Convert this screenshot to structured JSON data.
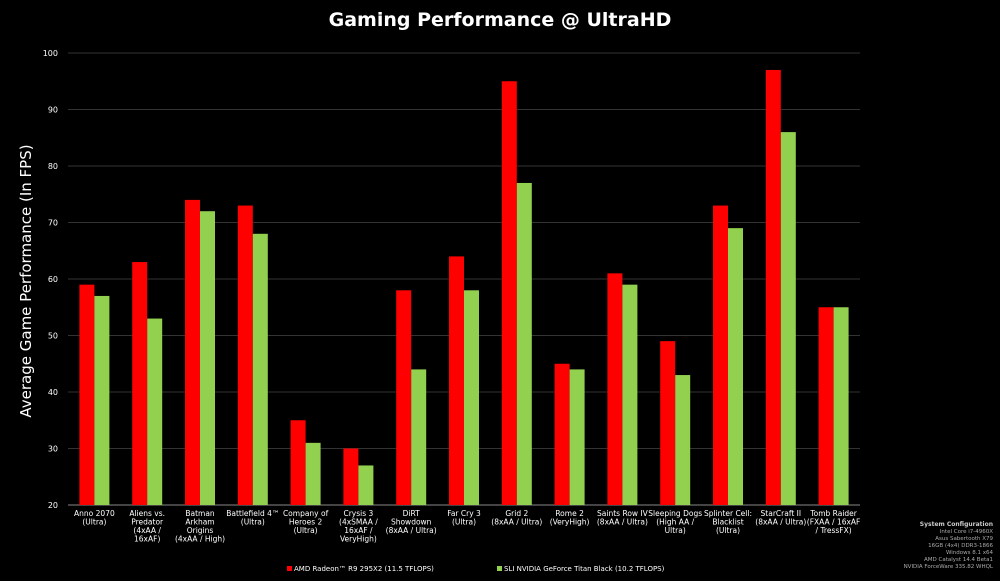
{
  "colors": {
    "series1": "#ff0000",
    "series2": "#92d050",
    "background": "#000000"
  },
  "chart_data": {
    "type": "bar",
    "title": "Gaming Performance @ UltraHD",
    "xlabel": "",
    "ylabel": "Average Game Performance (In FPS)",
    "ylim": [
      20,
      100
    ],
    "yticks": [
      20,
      30,
      40,
      50,
      60,
      70,
      80,
      90,
      100
    ],
    "grid": true,
    "legend_position": "bottom",
    "categories": [
      [
        "Anno 2070",
        "(Ultra)"
      ],
      [
        "Aliens vs.",
        "Predator",
        "(4xAA /",
        "16xAF)"
      ],
      [
        "Batman",
        "Arkham",
        "Origins",
        "(4xAA / High)"
      ],
      [
        "Battlefield 4™",
        "(Ultra)"
      ],
      [
        "Company of",
        "Heroes 2",
        "(Ultra)"
      ],
      [
        "Crysis 3",
        "(4xSMAA /",
        "16xAF /",
        "VeryHigh)"
      ],
      [
        "DiRT",
        "Showdown",
        "(8xAA / Ultra)"
      ],
      [
        "Far Cry 3",
        "(Ultra)"
      ],
      [
        "Grid 2",
        "(8xAA / Ultra)"
      ],
      [
        "Rome 2",
        "(VeryHigh)"
      ],
      [
        "Saints Row IV",
        "(8xAA / Ultra)"
      ],
      [
        "Sleeping Dogs",
        "(High AA /",
        "Ultra)"
      ],
      [
        "Splinter Cell:",
        "Blacklist",
        "(Ultra)"
      ],
      [
        "StarCraft II",
        "(8xAA / Ultra)"
      ],
      [
        "Tomb Raider",
        "(FXAA / 16xAF",
        "/ TressFX)"
      ]
    ],
    "series": [
      {
        "name": "AMD Radeon™ R9 295X2 (11.5 TFLOPS)",
        "color": "#ff0000",
        "values": [
          59,
          63,
          74,
          73,
          35,
          30,
          58,
          64,
          95,
          45,
          61,
          49,
          73,
          97,
          55
        ]
      },
      {
        "name": "SLI NVIDIA GeForce Titan Black (10.2 TFLOPS)",
        "color": "#92d050",
        "values": [
          57,
          53,
          72,
          68,
          31,
          27,
          44,
          58,
          77,
          44,
          59,
          43,
          69,
          86,
          55
        ]
      }
    ]
  },
  "system_config": {
    "heading": "System Configuration",
    "lines": [
      "Intel Core i7-4960X",
      "Asus Sabertooth X79",
      "16GB (4x4) DDR3-1866",
      "Windows 8.1 x64",
      "AMD Catalyst 14.4 Beta1",
      "NVIDIA ForceWare 335.82 WHQL"
    ]
  }
}
